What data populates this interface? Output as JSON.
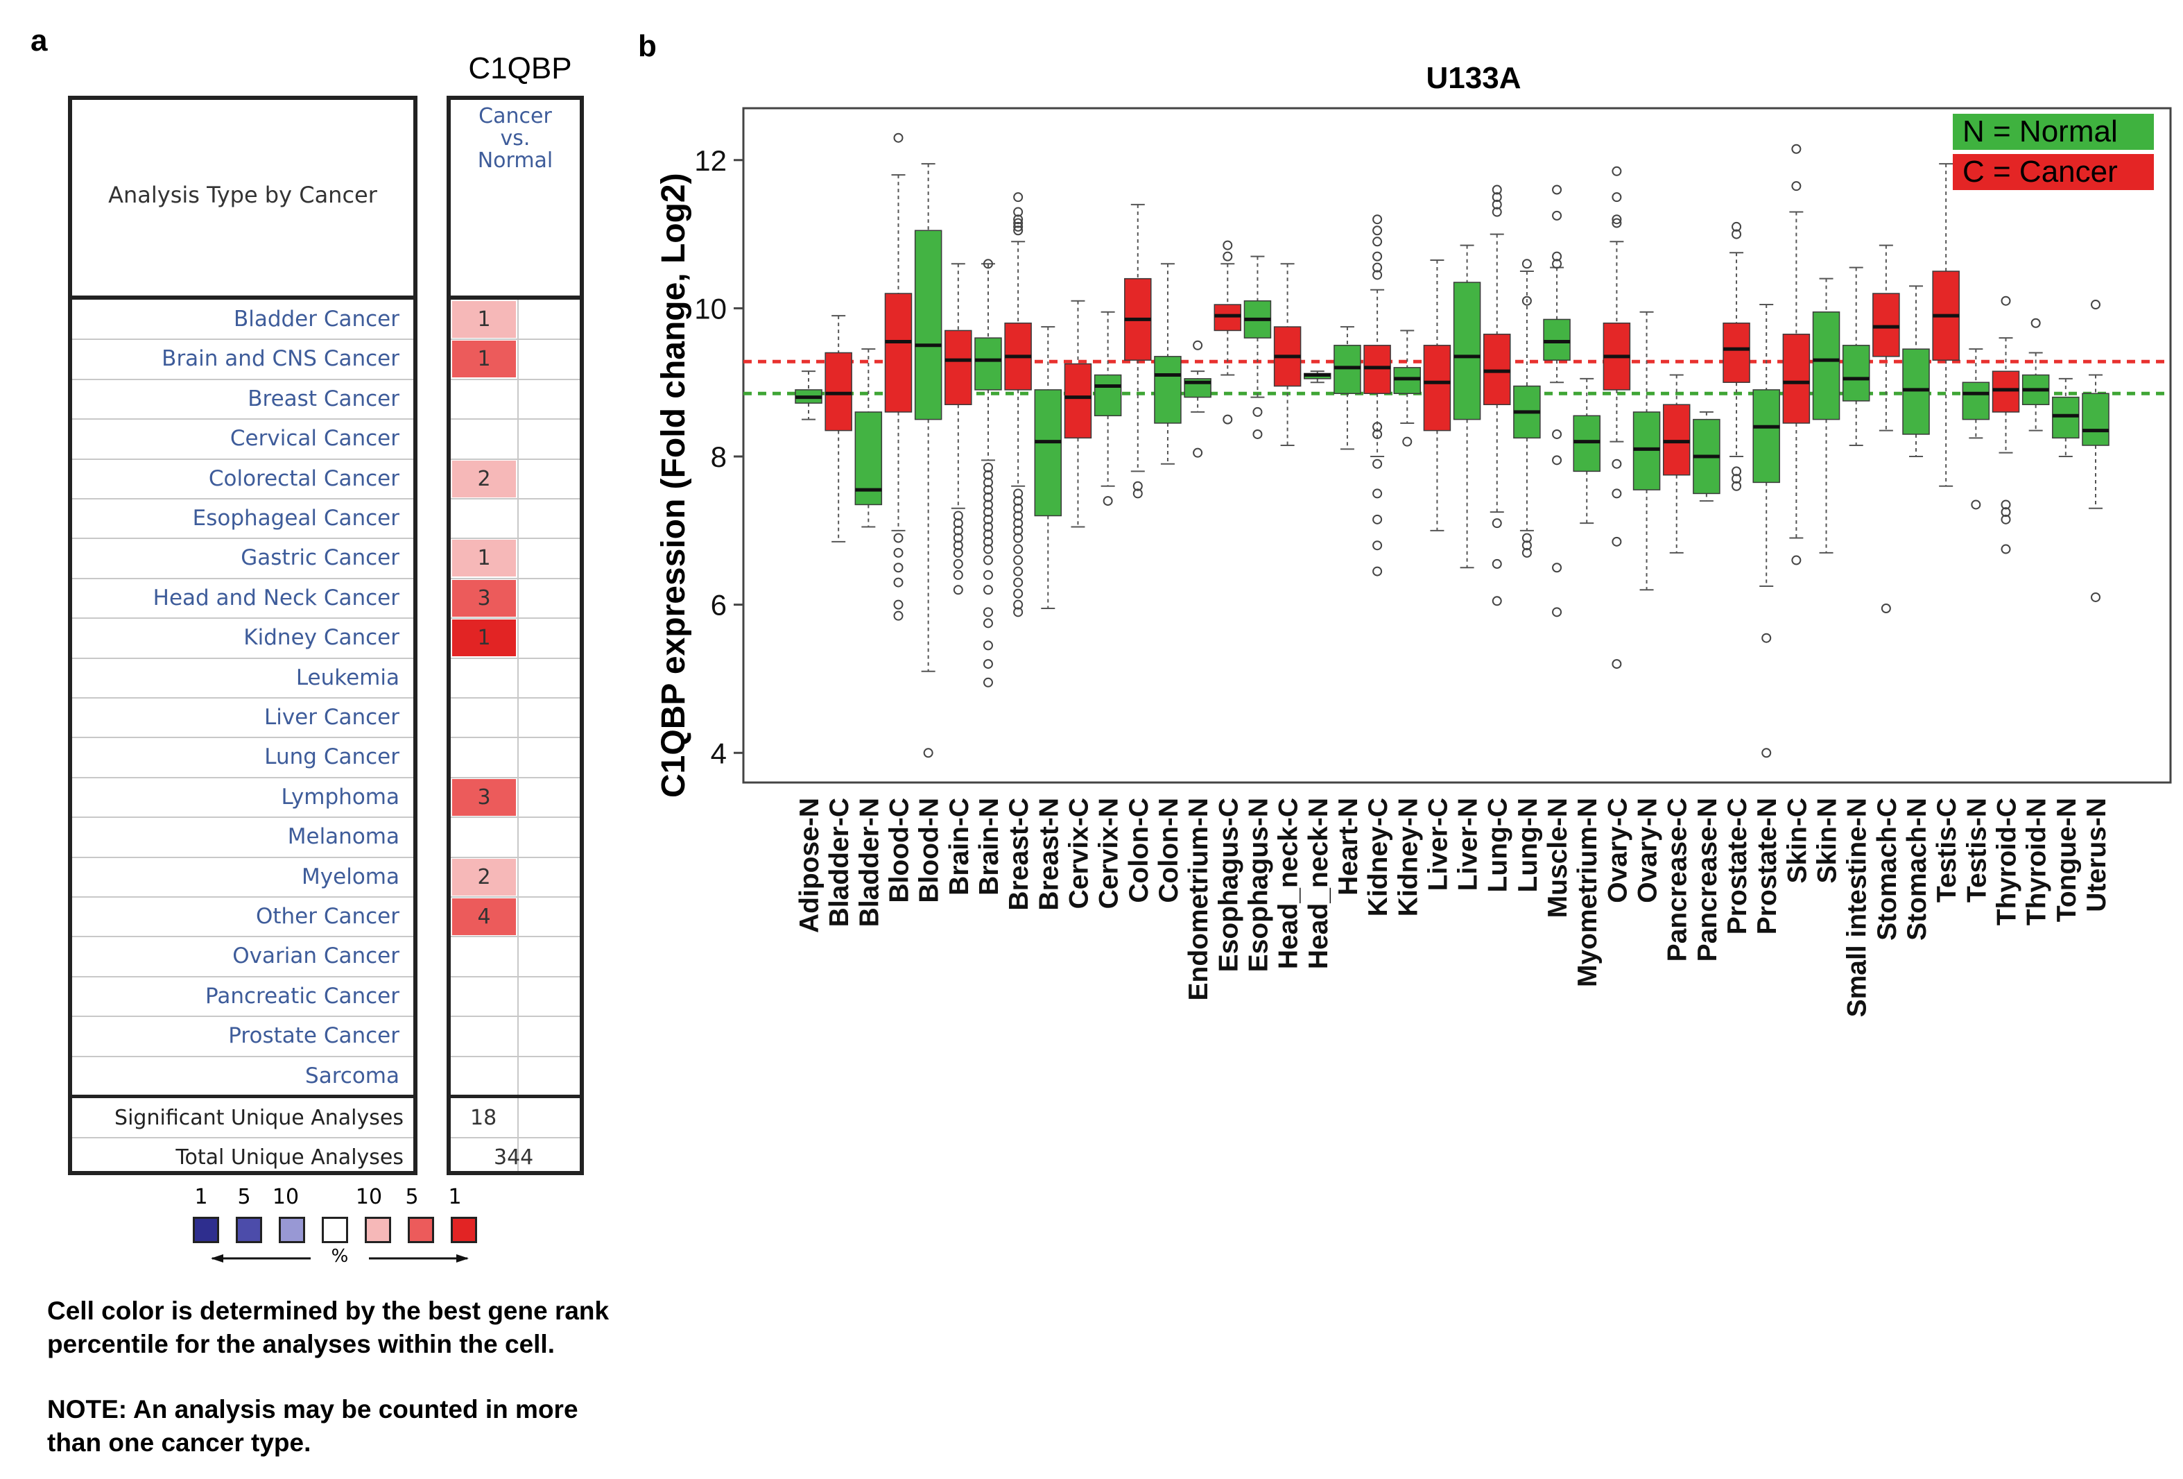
{
  "panel_a": {
    "letter": "a",
    "gene": "C1QBP",
    "header_left": "Analysis Type by Cancer",
    "header_right": [
      "Cancer",
      "vs.",
      "Normal"
    ],
    "rows": [
      {
        "label": "Bladder Cancer",
        "value": "1",
        "color": "#f6b8b8"
      },
      {
        "label": "Brain and CNS Cancer",
        "value": "1",
        "color": "#ec5b5b"
      },
      {
        "label": "Breast Cancer",
        "value": "",
        "color": ""
      },
      {
        "label": "Cervical Cancer",
        "value": "",
        "color": ""
      },
      {
        "label": "Colorectal Cancer",
        "value": "2",
        "color": "#f6b8b8"
      },
      {
        "label": "Esophageal Cancer",
        "value": "",
        "color": ""
      },
      {
        "label": "Gastric Cancer",
        "value": "1",
        "color": "#f6b8b8"
      },
      {
        "label": "Head and Neck Cancer",
        "value": "3",
        "color": "#ec5b5b"
      },
      {
        "label": "Kidney Cancer",
        "value": "1",
        "color": "#e22424"
      },
      {
        "label": "Leukemia",
        "value": "",
        "color": ""
      },
      {
        "label": "Liver Cancer",
        "value": "",
        "color": ""
      },
      {
        "label": "Lung Cancer",
        "value": "",
        "color": ""
      },
      {
        "label": "Lymphoma",
        "value": "3",
        "color": "#ec5b5b"
      },
      {
        "label": "Melanoma",
        "value": "",
        "color": ""
      },
      {
        "label": "Myeloma",
        "value": "2",
        "color": "#f6b8b8"
      },
      {
        "label": "Other Cancer",
        "value": "4",
        "color": "#ec5b5b"
      },
      {
        "label": "Ovarian Cancer",
        "value": "",
        "color": ""
      },
      {
        "label": "Pancreatic Cancer",
        "value": "",
        "color": ""
      },
      {
        "label": "Prostate Cancer",
        "value": "",
        "color": ""
      },
      {
        "label": "Sarcoma",
        "value": "",
        "color": ""
      }
    ],
    "summary": [
      {
        "label": "Significant Unique Analyses",
        "value": "18"
      },
      {
        "label": "Total Unique Analyses",
        "value": "344"
      }
    ],
    "legend": {
      "numbers": [
        "1",
        "5",
        "10",
        "10",
        "5",
        "1"
      ],
      "colors": [
        "#2e2e8e",
        "#4c4caa",
        "#9898d4",
        "#ffffff",
        "#f6b8b8",
        "#ec5b5b",
        "#e22424"
      ],
      "unit": "%"
    },
    "note1": [
      "Cell color is determined by the best gene rank",
      "percentile for the analyses within the cell."
    ],
    "note2": [
      "NOTE: An analysis may be counted in more",
      "than one cancer type."
    ]
  },
  "chart_data": {
    "type": "box",
    "panel_letter": "b",
    "title": "U133A",
    "ylabel": "C1QBP expression (Fold change, Log2)",
    "xlabel": "",
    "ylim": [
      3.6,
      12.7
    ],
    "yticks": [
      4,
      6,
      8,
      10,
      12
    ],
    "reference_lines": [
      {
        "value": 9.28,
        "color": "#e8312f",
        "style": "dashed"
      },
      {
        "value": 8.85,
        "color": "#3fa535",
        "style": "dashed"
      }
    ],
    "legend": [
      {
        "label": "N = Normal",
        "color": "#3fb23f"
      },
      {
        "label": "C = Cancer",
        "color": "#e42525"
      }
    ],
    "groups": [
      {
        "name": "Adipose-N",
        "type": "N",
        "q1": 8.72,
        "median": 8.8,
        "q3": 8.9,
        "wlo": 8.5,
        "whi": 9.15,
        "outliers": []
      },
      {
        "name": "Bladder-C",
        "type": "C",
        "q1": 8.35,
        "median": 8.85,
        "q3": 9.4,
        "wlo": 6.85,
        "whi": 9.9,
        "outliers": []
      },
      {
        "name": "Bladder-N",
        "type": "N",
        "q1": 7.35,
        "median": 7.55,
        "q3": 8.6,
        "wlo": 7.05,
        "whi": 9.45,
        "outliers": []
      },
      {
        "name": "Blood-C",
        "type": "C",
        "q1": 8.6,
        "median": 9.55,
        "q3": 10.2,
        "wlo": 7.0,
        "whi": 11.8,
        "outliers": [
          12.3,
          6.9,
          6.7,
          6.5,
          6.3,
          6.0,
          5.85
        ]
      },
      {
        "name": "Blood-N",
        "type": "N",
        "q1": 8.5,
        "median": 9.5,
        "q3": 11.05,
        "wlo": 5.1,
        "whi": 11.95,
        "outliers": [
          4.0
        ]
      },
      {
        "name": "Brain-C",
        "type": "C",
        "q1": 8.7,
        "median": 9.3,
        "q3": 9.7,
        "wlo": 7.3,
        "whi": 10.6,
        "outliers": [
          7.2,
          7.1,
          7.0,
          6.9,
          6.8,
          6.7,
          6.55,
          6.4,
          6.2
        ]
      },
      {
        "name": "Brain-N",
        "type": "N",
        "q1": 8.9,
        "median": 9.3,
        "q3": 9.6,
        "wlo": 7.95,
        "whi": 10.6,
        "outliers": [
          10.6,
          7.85,
          7.75,
          7.65,
          7.55,
          7.45,
          7.35,
          7.25,
          7.15,
          7.05,
          6.95,
          6.85,
          6.75,
          6.6,
          6.4,
          6.2,
          5.9,
          5.75,
          5.45,
          5.2,
          4.95
        ]
      },
      {
        "name": "Breast-C",
        "type": "C",
        "q1": 8.9,
        "median": 9.35,
        "q3": 9.8,
        "wlo": 7.6,
        "whi": 10.9,
        "outliers": [
          11.5,
          11.3,
          11.2,
          11.15,
          11.1,
          11.05,
          7.5,
          7.4,
          7.3,
          7.2,
          7.1,
          7.0,
          6.9,
          6.75,
          6.6,
          6.45,
          6.3,
          6.15,
          6.0,
          5.9
        ]
      },
      {
        "name": "Breast-N",
        "type": "N",
        "q1": 7.2,
        "median": 8.2,
        "q3": 8.9,
        "wlo": 5.95,
        "whi": 9.75,
        "outliers": []
      },
      {
        "name": "Cervix-C",
        "type": "C",
        "q1": 8.25,
        "median": 8.8,
        "q3": 9.25,
        "wlo": 7.05,
        "whi": 10.1,
        "outliers": []
      },
      {
        "name": "Cervix-N",
        "type": "N",
        "q1": 8.55,
        "median": 8.95,
        "q3": 9.1,
        "wlo": 7.6,
        "whi": 9.95,
        "outliers": [
          7.4
        ]
      },
      {
        "name": "Colon-C",
        "type": "C",
        "q1": 9.3,
        "median": 9.85,
        "q3": 10.4,
        "wlo": 7.8,
        "whi": 11.4,
        "outliers": [
          7.6,
          7.5
        ]
      },
      {
        "name": "Colon-N",
        "type": "N",
        "q1": 8.45,
        "median": 9.1,
        "q3": 9.35,
        "wlo": 7.9,
        "whi": 10.6,
        "outliers": []
      },
      {
        "name": "Endometrium-N",
        "type": "N",
        "q1": 8.8,
        "median": 9.0,
        "q3": 9.05,
        "wlo": 8.6,
        "whi": 9.15,
        "outliers": [
          9.5,
          8.05
        ]
      },
      {
        "name": "Esophagus-C",
        "type": "C",
        "q1": 9.7,
        "median": 9.9,
        "q3": 10.05,
        "wlo": 9.1,
        "whi": 10.6,
        "outliers": [
          10.85,
          10.7,
          8.5
        ]
      },
      {
        "name": "Esophagus-N",
        "type": "N",
        "q1": 9.6,
        "median": 9.85,
        "q3": 10.1,
        "wlo": 8.8,
        "whi": 10.7,
        "outliers": [
          8.6,
          8.3
        ]
      },
      {
        "name": "Head_neck-C",
        "type": "C",
        "q1": 8.95,
        "median": 9.35,
        "q3": 9.75,
        "wlo": 8.15,
        "whi": 10.6,
        "outliers": []
      },
      {
        "name": "Head_neck-N",
        "type": "N",
        "q1": 9.05,
        "median": 9.1,
        "q3": 9.12,
        "wlo": 9.0,
        "whi": 9.15,
        "outliers": []
      },
      {
        "name": "Heart-N",
        "type": "N",
        "q1": 8.85,
        "median": 9.2,
        "q3": 9.5,
        "wlo": 8.1,
        "whi": 9.75,
        "outliers": []
      },
      {
        "name": "Kidney-C",
        "type": "C",
        "q1": 8.85,
        "median": 9.2,
        "q3": 9.5,
        "wlo": 8.0,
        "whi": 10.25,
        "outliers": [
          11.2,
          11.05,
          10.9,
          10.7,
          10.55,
          10.45,
          8.4,
          8.3,
          7.9,
          7.5,
          7.15,
          6.8,
          6.45
        ]
      },
      {
        "name": "Kidney-N",
        "type": "N",
        "q1": 8.85,
        "median": 9.05,
        "q3": 9.2,
        "wlo": 8.45,
        "whi": 9.7,
        "outliers": [
          8.2
        ]
      },
      {
        "name": "Liver-C",
        "type": "C",
        "q1": 8.35,
        "median": 9.0,
        "q3": 9.5,
        "wlo": 7.0,
        "whi": 10.65,
        "outliers": []
      },
      {
        "name": "Liver-N",
        "type": "N",
        "q1": 8.5,
        "median": 9.35,
        "q3": 10.35,
        "wlo": 6.5,
        "whi": 10.85,
        "outliers": []
      },
      {
        "name": "Lung-C",
        "type": "C",
        "q1": 8.7,
        "median": 9.15,
        "q3": 9.65,
        "wlo": 7.25,
        "whi": 11.0,
        "outliers": [
          11.6,
          11.5,
          11.4,
          11.3,
          7.1,
          6.55,
          6.05
        ]
      },
      {
        "name": "Lung-N",
        "type": "N",
        "q1": 8.25,
        "median": 8.6,
        "q3": 8.95,
        "wlo": 7.0,
        "whi": 10.5,
        "outliers": [
          10.6,
          10.1,
          6.9,
          6.8,
          6.7
        ]
      },
      {
        "name": "Muscle-N",
        "type": "N",
        "q1": 9.3,
        "median": 9.55,
        "q3": 9.85,
        "wlo": 9.0,
        "whi": 10.55,
        "outliers": [
          11.6,
          11.25,
          10.7,
          10.6,
          8.3,
          7.95,
          6.5,
          5.9
        ]
      },
      {
        "name": "Myometrium-N",
        "type": "N",
        "q1": 7.8,
        "median": 8.2,
        "q3": 8.55,
        "wlo": 7.1,
        "whi": 9.05,
        "outliers": []
      },
      {
        "name": "Ovary-C",
        "type": "C",
        "q1": 8.9,
        "median": 9.35,
        "q3": 9.8,
        "wlo": 8.2,
        "whi": 10.9,
        "outliers": [
          11.85,
          11.5,
          11.2,
          11.15,
          7.9,
          7.5,
          6.85,
          5.2
        ]
      },
      {
        "name": "Ovary-N",
        "type": "N",
        "q1": 7.55,
        "median": 8.1,
        "q3": 8.6,
        "wlo": 6.2,
        "whi": 9.95,
        "outliers": []
      },
      {
        "name": "Pancrease-C",
        "type": "C",
        "q1": 7.75,
        "median": 8.2,
        "q3": 8.7,
        "wlo": 6.7,
        "whi": 9.1,
        "outliers": []
      },
      {
        "name": "Pancrease-N",
        "type": "N",
        "q1": 7.5,
        "median": 8.0,
        "q3": 8.5,
        "wlo": 7.4,
        "whi": 8.6,
        "outliers": []
      },
      {
        "name": "Prostate-C",
        "type": "C",
        "q1": 9.0,
        "median": 9.45,
        "q3": 9.8,
        "wlo": 8.0,
        "whi": 10.75,
        "outliers": [
          11.1,
          11.0,
          7.8,
          7.7,
          7.6
        ]
      },
      {
        "name": "Prostate-N",
        "type": "N",
        "q1": 7.65,
        "median": 8.4,
        "q3": 8.9,
        "wlo": 6.25,
        "whi": 10.05,
        "outliers": [
          5.55,
          4.0
        ]
      },
      {
        "name": "Skin-C",
        "type": "C",
        "q1": 8.45,
        "median": 9.0,
        "q3": 9.65,
        "wlo": 6.9,
        "whi": 11.3,
        "outliers": [
          12.15,
          11.65,
          6.6
        ]
      },
      {
        "name": "Skin-N",
        "type": "N",
        "q1": 8.5,
        "median": 9.3,
        "q3": 9.95,
        "wlo": 6.7,
        "whi": 10.4,
        "outliers": []
      },
      {
        "name": "Small intestine-N",
        "type": "N",
        "q1": 8.75,
        "median": 9.05,
        "q3": 9.5,
        "wlo": 8.15,
        "whi": 10.55,
        "outliers": []
      },
      {
        "name": "Stomach-C",
        "type": "C",
        "q1": 9.35,
        "median": 9.75,
        "q3": 10.2,
        "wlo": 8.35,
        "whi": 10.85,
        "outliers": [
          5.95
        ]
      },
      {
        "name": "Stomach-N",
        "type": "N",
        "q1": 8.3,
        "median": 8.9,
        "q3": 9.45,
        "wlo": 8.0,
        "whi": 10.3,
        "outliers": []
      },
      {
        "name": "Testis-C",
        "type": "C",
        "q1": 9.3,
        "median": 9.9,
        "q3": 10.5,
        "wlo": 7.6,
        "whi": 11.95,
        "outliers": []
      },
      {
        "name": "Testis-N",
        "type": "N",
        "q1": 8.5,
        "median": 8.85,
        "q3": 9.0,
        "wlo": 8.25,
        "whi": 9.45,
        "outliers": [
          7.35
        ]
      },
      {
        "name": "Thyroid-C",
        "type": "C",
        "q1": 8.6,
        "median": 8.9,
        "q3": 9.15,
        "wlo": 8.05,
        "whi": 9.6,
        "outliers": [
          10.1,
          7.35,
          7.25,
          7.15,
          6.75
        ]
      },
      {
        "name": "Thyroid-N",
        "type": "N",
        "q1": 8.7,
        "median": 8.9,
        "q3": 9.1,
        "wlo": 8.35,
        "whi": 9.4,
        "outliers": [
          9.8
        ]
      },
      {
        "name": "Tongue-N",
        "type": "N",
        "q1": 8.25,
        "median": 8.55,
        "q3": 8.8,
        "wlo": 8.0,
        "whi": 9.05,
        "outliers": []
      },
      {
        "name": "Uterus-N",
        "type": "N",
        "q1": 8.15,
        "median": 8.35,
        "q3": 8.85,
        "wlo": 7.3,
        "whi": 9.1,
        "outliers": [
          10.05,
          6.1
        ]
      }
    ],
    "colors": {
      "N": "#43b343",
      "C": "#e42727",
      "N_legend": "#3fb23f",
      "C_legend": "#e42525"
    }
  }
}
